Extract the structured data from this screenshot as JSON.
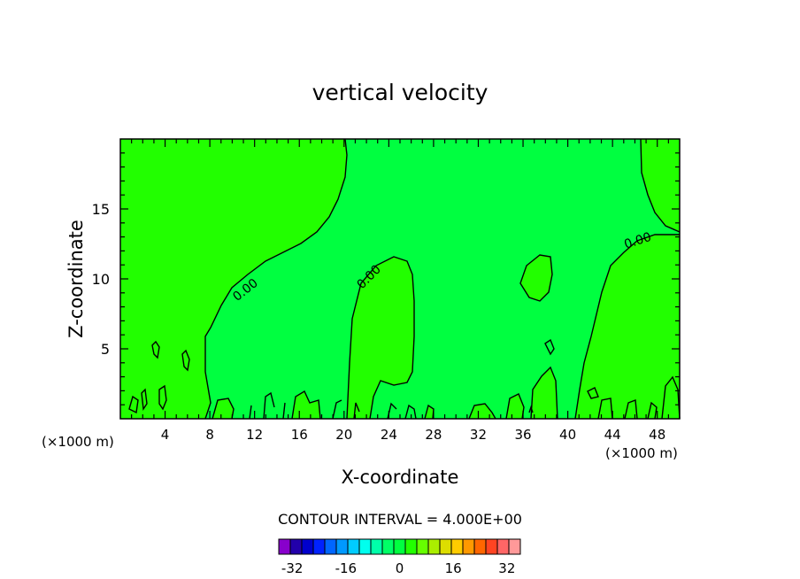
{
  "chart_data": {
    "type": "contour",
    "title": "vertical velocity",
    "xlabel": "X-coordinate",
    "ylabel": "Z-coordinate",
    "x_unit": "(×1000 m)",
    "x_unit_right": "(×1000 m)",
    "xlim": [
      0,
      50
    ],
    "ylim": [
      0,
      20
    ],
    "xticks": [
      4,
      8,
      12,
      16,
      20,
      24,
      28,
      32,
      36,
      40,
      44,
      48
    ],
    "yticks": [
      5,
      10,
      15
    ],
    "contour_labels": [
      "0.00",
      "0.00",
      "0.00"
    ],
    "fill_colors": {
      "positive": "#22ff00",
      "near_zero": "#00ff40"
    },
    "contour_interval_text": "CONTOUR INTERVAL = 4.000E+00",
    "contour_interval": 4.0,
    "colorbar": {
      "min": -36,
      "max": 36,
      "tick_labels": [
        "-32",
        "-16",
        "0",
        "16",
        "32"
      ],
      "tick_values": [
        -32,
        -16,
        0,
        16,
        32
      ],
      "colors": [
        "#8800cc",
        "#2200aa",
        "#0000cc",
        "#0022ff",
        "#0066ff",
        "#0099ff",
        "#00ccff",
        "#00ffee",
        "#00ffaa",
        "#00ff66",
        "#00ff40",
        "#22ff00",
        "#66ff00",
        "#aaee00",
        "#dddd00",
        "#ffcc00",
        "#ff9900",
        "#ff6600",
        "#ff4422",
        "#ff6666",
        "#ff9999"
      ]
    }
  }
}
